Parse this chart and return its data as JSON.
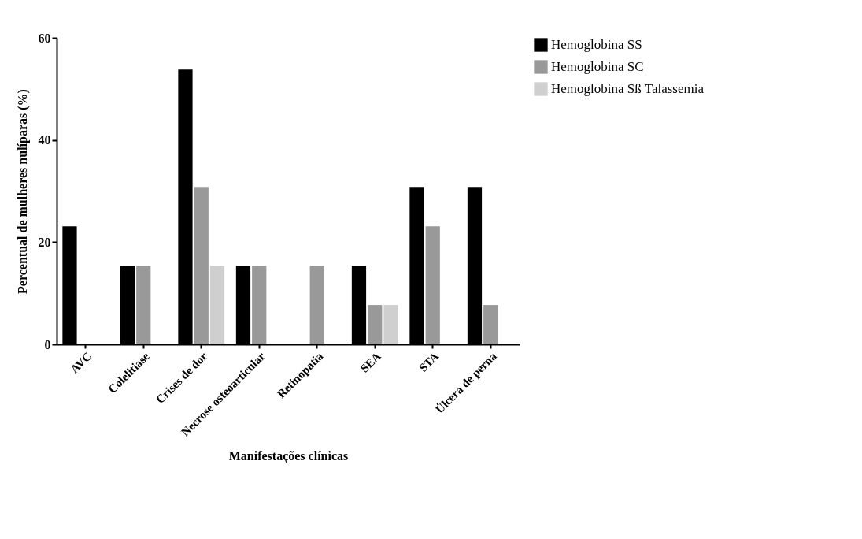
{
  "chart_data": {
    "type": "bar",
    "xlabel": "Manifestações clínicas",
    "ylabel": "Percentual de mulheres nulíparas (%)",
    "categories": [
      "AVC",
      "Colelitiase",
      "Crises de dor",
      "Necrose osteoarticular",
      "Retinopatia",
      "SEA",
      "STA",
      "Úlcera de perna"
    ],
    "series": [
      {
        "name": "Hemoglobina SS",
        "color": "#000000",
        "values": [
          23.1,
          15.4,
          53.8,
          15.4,
          null,
          15.4,
          30.8,
          30.8
        ]
      },
      {
        "name": "Hemoglobina SC",
        "color": "#999999",
        "values": [
          null,
          15.4,
          30.8,
          15.4,
          15.4,
          7.7,
          23.1,
          7.7
        ]
      },
      {
        "name": "Hemoglobina Sß Talassemia",
        "color": "#cfcfcf",
        "values": [
          null,
          null,
          15.4,
          null,
          null,
          7.7,
          null,
          null
        ]
      }
    ],
    "ylim": [
      0,
      60
    ],
    "yticks": [
      0,
      20,
      40,
      60
    ],
    "grid": false,
    "legend": "top right"
  }
}
